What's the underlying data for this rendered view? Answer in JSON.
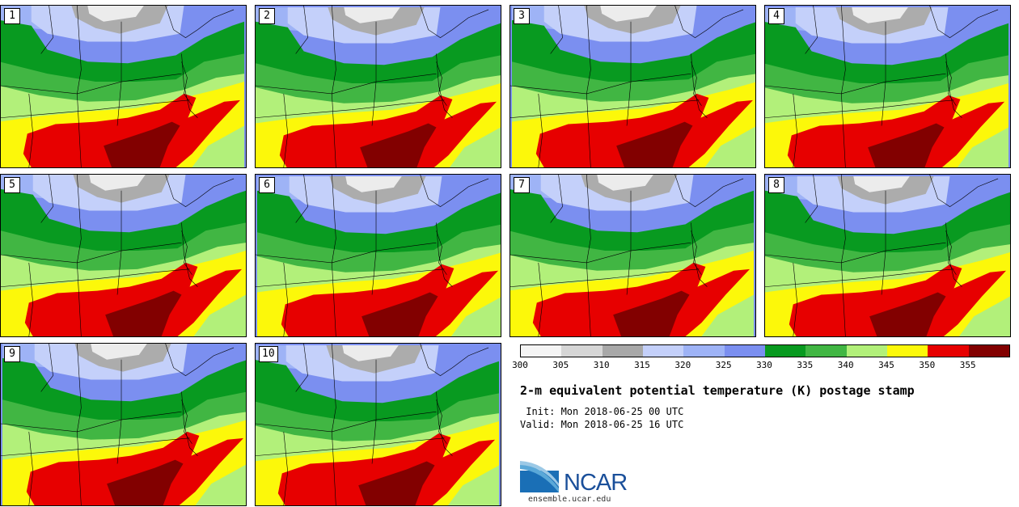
{
  "panels": [
    {
      "label": "1"
    },
    {
      "label": "2"
    },
    {
      "label": "3"
    },
    {
      "label": "4"
    },
    {
      "label": "5"
    },
    {
      "label": "6"
    },
    {
      "label": "7"
    },
    {
      "label": "8"
    },
    {
      "label": "9"
    },
    {
      "label": "10"
    }
  ],
  "colorbar": {
    "colors": [
      "#f4f4f4",
      "#d6d6d6",
      "#a8a8a8",
      "#c4d0fa",
      "#9eb3f6",
      "#7b8ff0",
      "#089a20",
      "#41b643",
      "#b2f07a",
      "#fcf80a",
      "#e70000",
      "#820000"
    ],
    "tick_labels": [
      "300",
      "305",
      "310",
      "315",
      "320",
      "325",
      "330",
      "335",
      "340",
      "345",
      "350",
      "355"
    ]
  },
  "title": "2-m equivalent potential temperature (K) postage stamp",
  "init": " Init: Mon 2018-06-25 00 UTC",
  "valid": "Valid: Mon 2018-06-25 16 UTC",
  "logo": {
    "text": "NCAR",
    "color": "#1a4f9a"
  },
  "footer": "ensemble.ucar.edu",
  "map_colors": {
    "gray_light": "#ececec",
    "gray": "#acacac",
    "blue_light": "#c4d0fa",
    "blue": "#9eb3f6",
    "blue_dark": "#7b8ff0",
    "green_dark": "#089a20",
    "green": "#41b643",
    "green_light": "#b2f07a",
    "yellow": "#fcf80a",
    "red": "#e70000",
    "red_dark": "#820000",
    "outline": "#000000"
  }
}
